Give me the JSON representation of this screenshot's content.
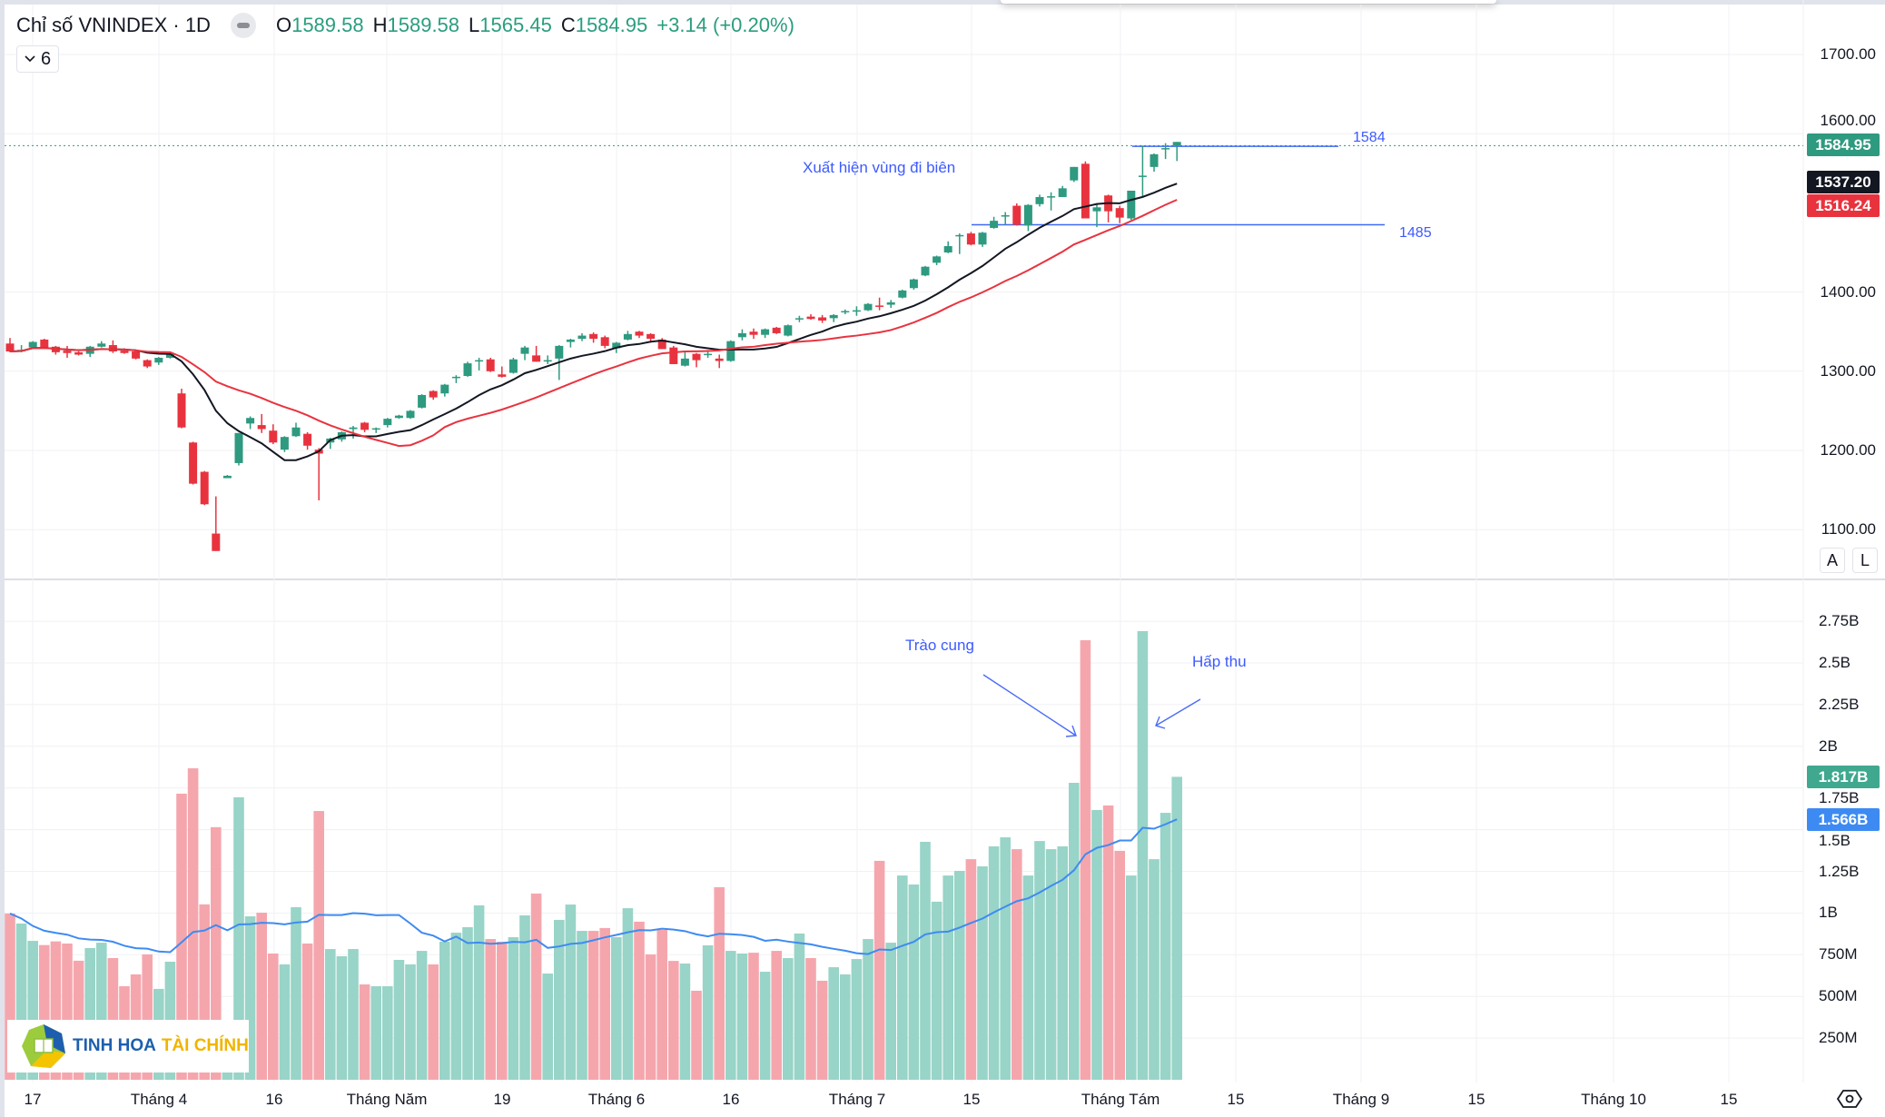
{
  "header": {
    "title": "Chỉ số VNINDEX · 1D",
    "ohlc": [
      {
        "key": "O",
        "value": "1589.58"
      },
      {
        "key": "H",
        "value": "1589.58"
      },
      {
        "key": "L",
        "value": "1565.45"
      },
      {
        "key": "C",
        "value": "1584.95"
      }
    ],
    "change": "+3.14 (+0.20%)",
    "indicators_collapsed_count": "6"
  },
  "colors": {
    "up": "#2e9a7f",
    "down": "#e8333f",
    "up_volume": "#98d4c7",
    "down_volume": "#f5a6ad",
    "ma10": "#131722",
    "ma20": "#e8333f",
    "volume_ma": "#3d8bf2",
    "annotation": "#3d5afe"
  },
  "chart_data": {
    "type": "candlestick",
    "interval": "1D",
    "symbol": "VNINDEX",
    "price_axis": {
      "ticks": [
        "1700.00",
        "1600.00",
        "1400.00",
        "1300.00",
        "1200.00",
        "1100.00"
      ],
      "tick_values": [
        1700,
        1600,
        1400,
        1300,
        1200,
        1100
      ],
      "range": [
        1060,
        1740
      ]
    },
    "volume_axis": {
      "ticks": [
        "2.75B",
        "2.5B",
        "2.25B",
        "2B",
        "1.75B",
        "1.5B",
        "1.25B",
        "1B",
        "750M",
        "500M",
        "250M"
      ],
      "tick_values": [
        2.75,
        2.5,
        2.25,
        2,
        1.75,
        1.5,
        1.25,
        1,
        0.75,
        0.5,
        0.25
      ],
      "unit": "B"
    },
    "time_axis": [
      "17",
      "Tháng 4",
      "16",
      "Tháng Năm",
      "19",
      "Tháng 6",
      "16",
      "Tháng 7",
      "15",
      "Tháng Tám",
      "15",
      "Tháng 9",
      "15",
      "Tháng 10",
      "15"
    ],
    "candles_ohlc": [
      [
        1335,
        1342,
        1324,
        1325
      ],
      [
        1327,
        1333,
        1324,
        1326
      ],
      [
        1330,
        1338,
        1329,
        1337
      ],
      [
        1340,
        1341,
        1330,
        1330
      ],
      [
        1331,
        1332,
        1321,
        1324
      ],
      [
        1326,
        1332,
        1317,
        1323
      ],
      [
        1324,
        1325,
        1320,
        1321
      ],
      [
        1322,
        1332,
        1318,
        1331
      ],
      [
        1331,
        1338,
        1330,
        1335
      ],
      [
        1333,
        1339,
        1323,
        1325
      ],
      [
        1326,
        1329,
        1322,
        1323
      ],
      [
        1325,
        1326,
        1315,
        1316
      ],
      [
        1314,
        1315,
        1304,
        1306
      ],
      [
        1311,
        1318,
        1308,
        1317
      ],
      [
        1317,
        1324,
        1316,
        1322
      ],
      [
        1272,
        1278,
        1228,
        1229
      ],
      [
        1210,
        1211,
        1157,
        1158
      ],
      [
        1173,
        1174,
        1131,
        1132
      ],
      [
        1095,
        1142,
        1073,
        1073
      ],
      [
        1165,
        1169,
        1165,
        1168
      ],
      [
        1184,
        1222,
        1181,
        1222
      ],
      [
        1234,
        1243,
        1227,
        1241
      ],
      [
        1232,
        1246,
        1222,
        1227
      ],
      [
        1225,
        1233,
        1208,
        1210
      ],
      [
        1201,
        1218,
        1198,
        1217
      ],
      [
        1218,
        1235,
        1217,
        1229
      ],
      [
        1221,
        1223,
        1201,
        1206
      ],
      [
        1201,
        1203,
        1137,
        1196
      ],
      [
        1210,
        1216,
        1202,
        1215
      ],
      [
        1214,
        1224,
        1211,
        1223
      ],
      [
        1227,
        1231,
        1215,
        1229
      ],
      [
        1235,
        1236,
        1223,
        1226
      ],
      [
        1228,
        1229,
        1222,
        1227
      ],
      [
        1232,
        1241,
        1229,
        1240
      ],
      [
        1241,
        1245,
        1240,
        1244
      ],
      [
        1241,
        1251,
        1240,
        1250
      ],
      [
        1254,
        1271,
        1253,
        1270
      ],
      [
        1275,
        1276,
        1264,
        1267
      ],
      [
        1272,
        1284,
        1268,
        1283
      ],
      [
        1292,
        1295,
        1285,
        1293
      ],
      [
        1294,
        1312,
        1293,
        1310
      ],
      [
        1313,
        1317,
        1301,
        1314
      ],
      [
        1315,
        1317,
        1299,
        1300
      ],
      [
        1296,
        1306,
        1292,
        1293
      ],
      [
        1298,
        1317,
        1297,
        1315
      ],
      [
        1322,
        1332,
        1314,
        1330
      ],
      [
        1320,
        1332,
        1312,
        1312
      ],
      [
        1313,
        1320,
        1309,
        1314
      ],
      [
        1316,
        1333,
        1289,
        1332
      ],
      [
        1337,
        1341,
        1330,
        1340
      ],
      [
        1341,
        1348,
        1338,
        1345
      ],
      [
        1347,
        1349,
        1336,
        1341
      ],
      [
        1343,
        1345,
        1329,
        1332
      ],
      [
        1329,
        1337,
        1323,
        1336
      ],
      [
        1340,
        1351,
        1339,
        1347
      ],
      [
        1350,
        1351,
        1342,
        1345
      ],
      [
        1347,
        1348,
        1336,
        1341
      ],
      [
        1340,
        1342,
        1328,
        1328
      ],
      [
        1330,
        1332,
        1309,
        1309
      ],
      [
        1307,
        1324,
        1306,
        1316
      ],
      [
        1322,
        1323,
        1305,
        1314
      ],
      [
        1321,
        1325,
        1317,
        1322
      ],
      [
        1316,
        1321,
        1304,
        1313
      ],
      [
        1313,
        1339,
        1312,
        1338
      ],
      [
        1343,
        1353,
        1339,
        1348
      ],
      [
        1350,
        1354,
        1341,
        1346
      ],
      [
        1346,
        1354,
        1342,
        1353
      ],
      [
        1355,
        1356,
        1347,
        1348
      ],
      [
        1345,
        1359,
        1344,
        1358
      ],
      [
        1366,
        1370,
        1362,
        1367
      ],
      [
        1369,
        1372,
        1365,
        1366
      ],
      [
        1368,
        1371,
        1361,
        1364
      ],
      [
        1367,
        1372,
        1362,
        1371
      ],
      [
        1375,
        1378,
        1372,
        1376
      ],
      [
        1376,
        1382,
        1370,
        1377
      ],
      [
        1377,
        1386,
        1376,
        1385
      ],
      [
        1383,
        1393,
        1377,
        1382
      ],
      [
        1384,
        1390,
        1380,
        1387
      ],
      [
        1393,
        1403,
        1392,
        1402
      ],
      [
        1405,
        1417,
        1403,
        1416
      ],
      [
        1421,
        1433,
        1420,
        1432
      ],
      [
        1437,
        1446,
        1434,
        1445
      ],
      [
        1450,
        1464,
        1449,
        1458
      ],
      [
        1471,
        1474,
        1448,
        1472
      ],
      [
        1474,
        1476,
        1459,
        1460
      ],
      [
        1460,
        1476,
        1457,
        1475
      ],
      [
        1481,
        1495,
        1480,
        1490
      ],
      [
        1496,
        1501,
        1485,
        1497
      ],
      [
        1509,
        1512,
        1484,
        1485
      ],
      [
        1484,
        1511,
        1477,
        1510
      ],
      [
        1511,
        1523,
        1508,
        1520
      ],
      [
        1520,
        1526,
        1503,
        1521
      ],
      [
        1520,
        1534,
        1520,
        1531
      ],
      [
        1541,
        1558,
        1539,
        1558
      ],
      [
        1562,
        1565,
        1493,
        1493
      ],
      [
        1502,
        1512,
        1482,
        1507
      ],
      [
        1522,
        1523,
        1488,
        1502
      ],
      [
        1506,
        1509,
        1487,
        1494
      ],
      [
        1493,
        1528,
        1491,
        1528
      ],
      [
        1546,
        1585,
        1521,
        1547
      ],
      [
        1558,
        1575,
        1552,
        1574
      ],
      [
        1581,
        1588,
        1568,
        1581.81
      ],
      [
        1589.58,
        1589.58,
        1565.45,
        1584.95
      ]
    ],
    "volumes_billion": [
      0.997,
      0.937,
      0.833,
      0.808,
      0.83,
      0.817,
      0.714,
      0.79,
      0.822,
      0.73,
      0.561,
      0.632,
      0.752,
      0.545,
      0.708,
      1.716,
      1.868,
      1.052,
      1.515,
      0.3,
      1.694,
      0.98,
      1.002,
      0.757,
      0.692,
      1.035,
      0.817,
      1.612,
      0.784,
      0.741,
      0.784,
      0.572,
      0.561,
      0.561,
      0.719,
      0.692,
      0.773,
      0.692,
      0.828,
      0.882,
      0.915,
      1.046,
      0.844,
      0.828,
      0.855,
      0.986,
      1.117,
      0.637,
      0.959,
      1.051,
      0.893,
      0.893,
      0.91,
      0.855,
      1.029,
      0.948,
      0.752,
      0.899,
      0.713,
      0.697,
      0.534,
      0.806,
      1.155,
      0.773,
      0.757,
      0.762,
      0.648,
      0.773,
      0.73,
      0.877,
      0.73,
      0.594,
      0.675,
      0.632,
      0.724,
      0.844,
      1.313,
      0.822,
      1.225,
      1.171,
      1.427,
      1.068,
      1.225,
      1.253,
      1.323,
      1.28,
      1.4,
      1.454,
      1.383,
      1.225,
      1.432,
      1.383,
      1.4,
      1.781,
      2.636,
      1.618,
      1.645,
      1.373,
      1.225,
      2.691,
      1.323,
      1.601,
      1.817
    ],
    "moving_averages": [
      {
        "source": "close",
        "period": 10,
        "color": "#131722",
        "last": "1537.20"
      },
      {
        "source": "close",
        "period": 20,
        "color": "#e8333f",
        "last": "1516.24"
      },
      {
        "source": "volume",
        "period": 20,
        "color": "#3d8bf2",
        "last": "1.566B"
      }
    ],
    "last_price_label": "1584.95",
    "last_volume_label": "1.817B",
    "horizontal_lines": [
      {
        "price": 1584,
        "label": "1584"
      },
      {
        "price": 1485,
        "label": "1485"
      }
    ],
    "annotations": {
      "price_zone": "Xuất hiện vùng đi biên",
      "volume_spike": "Trào cung",
      "volume_absorb": "Hấp thu"
    }
  },
  "price_scale_buttons": {
    "auto": "A",
    "log": "L"
  },
  "logo": {
    "brand_part1": "TINH HOA",
    "brand_part2": "TÀI CHÍNH"
  },
  "icons": {
    "settings": "gear-icon",
    "collapse": "chevron-down-icon",
    "logo": "book-hexagon-logo"
  }
}
